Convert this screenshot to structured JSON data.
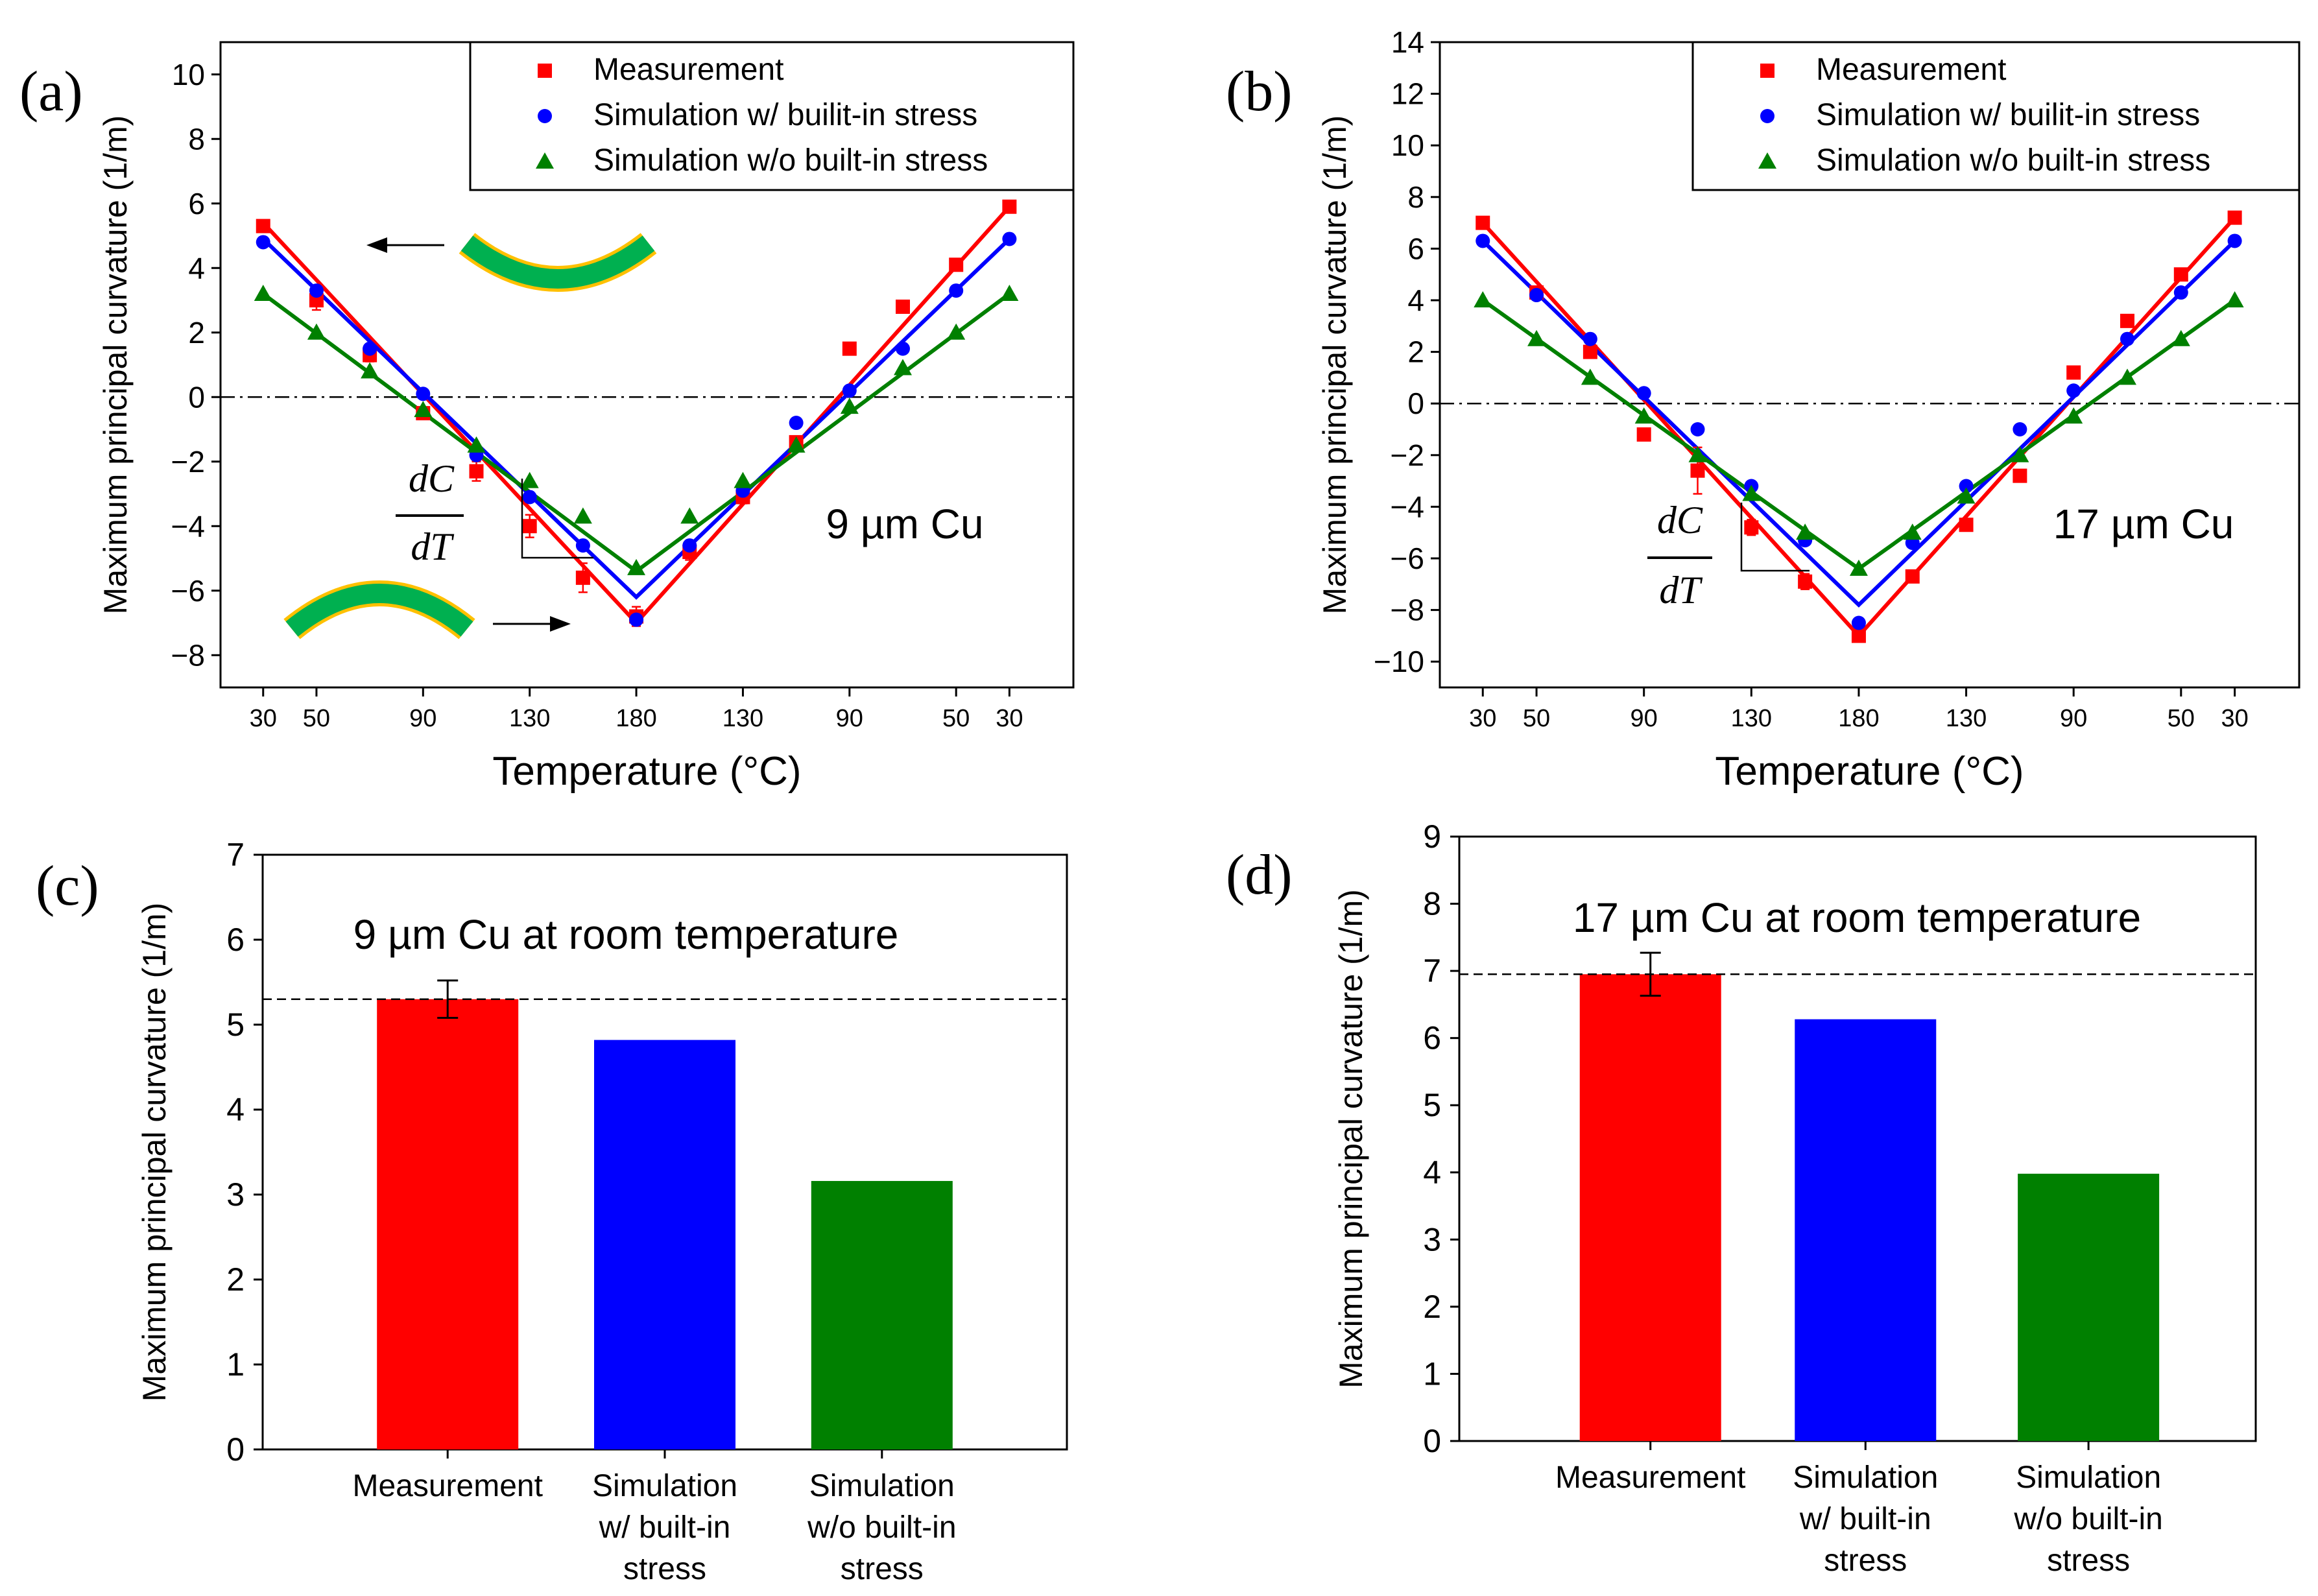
{
  "chart_data": [
    {
      "panel": "(a)",
      "type": "scatter",
      "annotation": "9 µm Cu",
      "ylabel": "Maximum principal curvature  (1/m)",
      "xlabel": "Temperature (°C)",
      "ylim": [
        -9,
        11
      ],
      "yticks": [
        -8,
        -6,
        -4,
        -2,
        0,
        2,
        4,
        6,
        8,
        10
      ],
      "x_ticks": [
        {
          "pos": 1,
          "label": "30"
        },
        {
          "pos": 2,
          "label": "50"
        },
        {
          "pos": 4,
          "label": "90"
        },
        {
          "pos": 6,
          "label": "130"
        },
        {
          "pos": 8,
          "label": "180"
        },
        {
          "pos": 10,
          "label": "130"
        },
        {
          "pos": 12,
          "label": "90"
        },
        {
          "pos": 14,
          "label": "50"
        },
        {
          "pos": 15,
          "label": "30"
        }
      ],
      "xlim": [
        0.2,
        16.2
      ],
      "deriv_label": {
        "num": "dC",
        "den": "dT"
      },
      "series": [
        {
          "name": "Measurement",
          "color": "#ff0000",
          "marker": "square",
          "x": [
            1,
            2,
            3,
            4,
            5,
            6,
            7,
            8,
            9,
            10,
            11,
            12,
            13,
            14,
            15
          ],
          "y": [
            5.3,
            3.0,
            1.3,
            -0.5,
            -2.3,
            -4.0,
            -5.6,
            -6.8,
            -4.8,
            -3.1,
            -1.4,
            1.5,
            2.8,
            4.1,
            5.9
          ],
          "err": [
            0.15,
            0.3,
            0.2,
            0.15,
            0.3,
            0.35,
            0.45,
            0.3,
            0.25,
            0.2,
            0.15,
            0.1,
            0.1,
            0.1,
            0.1
          ],
          "fit_y": [
            5.4,
            -7.0,
            5.9
          ]
        },
        {
          "name": "Simulation w/ builit-in stress",
          "color": "#0000ff",
          "marker": "circle",
          "x": [
            1,
            2,
            3,
            4,
            5,
            6,
            7,
            8,
            9,
            10,
            11,
            12,
            13,
            14,
            15
          ],
          "y": [
            4.8,
            3.3,
            1.5,
            0.1,
            -1.8,
            -3.1,
            -4.6,
            -6.9,
            -4.6,
            -2.9,
            -0.8,
            0.2,
            1.5,
            3.3,
            4.9
          ],
          "fit_y": [
            4.9,
            -6.2,
            4.9
          ]
        },
        {
          "name": "Simulation w/o built-in stress",
          "color": "#008000",
          "marker": "triangle",
          "x": [
            1,
            2,
            3,
            4,
            5,
            6,
            7,
            8,
            9,
            10,
            11,
            12,
            13,
            14,
            15
          ],
          "y": [
            3.2,
            2.0,
            0.8,
            -0.4,
            -1.5,
            -2.6,
            -3.7,
            -5.3,
            -3.7,
            -2.6,
            -1.5,
            -0.3,
            0.9,
            2.0,
            3.2
          ],
          "fit_y": [
            3.2,
            -5.4,
            3.2
          ]
        }
      ]
    },
    {
      "panel": "(b)",
      "type": "scatter",
      "annotation": "17 µm Cu",
      "ylabel": "Maximum principal curvature  (1/m)",
      "xlabel": "Temperature (°C)",
      "ylim": [
        -11,
        14
      ],
      "yticks": [
        -10,
        -8,
        -6,
        -4,
        -2,
        0,
        2,
        4,
        6,
        8,
        10,
        12,
        14
      ],
      "x_ticks": [
        {
          "pos": 1,
          "label": "30"
        },
        {
          "pos": 2,
          "label": "50"
        },
        {
          "pos": 4,
          "label": "90"
        },
        {
          "pos": 6,
          "label": "130"
        },
        {
          "pos": 8,
          "label": "180"
        },
        {
          "pos": 10,
          "label": "130"
        },
        {
          "pos": 12,
          "label": "90"
        },
        {
          "pos": 14,
          "label": "50"
        },
        {
          "pos": 15,
          "label": "30"
        }
      ],
      "xlim": [
        0.2,
        16.2
      ],
      "deriv_label": {
        "num": "dC",
        "den": "dT"
      },
      "series": [
        {
          "name": "Measurement",
          "color": "#ff0000",
          "marker": "square",
          "x": [
            1,
            2,
            3,
            4,
            5,
            6,
            7,
            8,
            9,
            10,
            11,
            12,
            13,
            14,
            15
          ],
          "y": [
            7.0,
            4.3,
            2.0,
            -1.2,
            -2.6,
            -4.8,
            -6.9,
            -9.0,
            -6.7,
            -4.7,
            -2.8,
            1.2,
            3.2,
            5.0,
            7.2
          ],
          "err": [
            0.1,
            0.15,
            0.2,
            0.2,
            0.9,
            0.3,
            0.3,
            0.2,
            0.2,
            0.2,
            0.2,
            0.1,
            0.1,
            0.1,
            0.1
          ],
          "fit_y": [
            7.0,
            -9.0,
            7.2
          ]
        },
        {
          "name": "Simulation w/ builit-in stress",
          "color": "#0000ff",
          "marker": "circle",
          "x": [
            1,
            2,
            3,
            4,
            5,
            6,
            7,
            8,
            9,
            10,
            11,
            12,
            13,
            14,
            15
          ],
          "y": [
            6.3,
            4.2,
            2.5,
            0.4,
            -1.0,
            -3.2,
            -5.3,
            -8.5,
            -5.4,
            -3.2,
            -1.0,
            0.5,
            2.5,
            4.3,
            6.3
          ],
          "fit_y": [
            6.3,
            -7.8,
            6.3
          ]
        },
        {
          "name": "Simulation w/o built-in stress",
          "color": "#008000",
          "marker": "triangle",
          "x": [
            1,
            2,
            3,
            4,
            5,
            6,
            7,
            8,
            9,
            10,
            11,
            12,
            13,
            14,
            15
          ],
          "y": [
            4.0,
            2.5,
            1.0,
            -0.5,
            -2.0,
            -3.5,
            -5.0,
            -6.4,
            -5.0,
            -3.6,
            -2.0,
            -0.5,
            1.0,
            2.5,
            4.0
          ],
          "fit_y": [
            4.0,
            -6.4,
            4.0
          ]
        }
      ]
    },
    {
      "panel": "(c)",
      "type": "bar",
      "title": "9 µm Cu at room temperature",
      "ylabel": "Maximum principal curvature  (1/m)",
      "ylim": [
        0,
        7
      ],
      "yticks": [
        0,
        1,
        2,
        3,
        4,
        5,
        6,
        7
      ],
      "categories": [
        [
          "Measurement"
        ],
        [
          "Simulation",
          "w/ built-in",
          "stress"
        ],
        [
          "Simulation",
          "w/o built-in",
          "stress"
        ]
      ],
      "values": [
        5.3,
        4.82,
        3.16
      ],
      "colors": [
        "#ff0000",
        "#0000ff",
        "#008000"
      ],
      "error": [
        0.22,
        null,
        null
      ],
      "reference_line": 5.3
    },
    {
      "panel": "(d)",
      "type": "bar",
      "title": "17 µm Cu at room temperature",
      "ylabel": "Maximum principal curvature  (1/m)",
      "ylim": [
        0,
        9
      ],
      "yticks": [
        0,
        1,
        2,
        3,
        4,
        5,
        6,
        7,
        8,
        9
      ],
      "categories": [
        [
          "Measurement"
        ],
        [
          "Simulation",
          "w/ built-in",
          "stress"
        ],
        [
          "Simulation",
          "w/o built-in",
          "stress"
        ]
      ],
      "values": [
        6.95,
        6.28,
        3.98
      ],
      "colors": [
        "#ff0000",
        "#0000ff",
        "#008000"
      ],
      "error": [
        0.32,
        null,
        null
      ],
      "reference_line": 6.95
    }
  ]
}
